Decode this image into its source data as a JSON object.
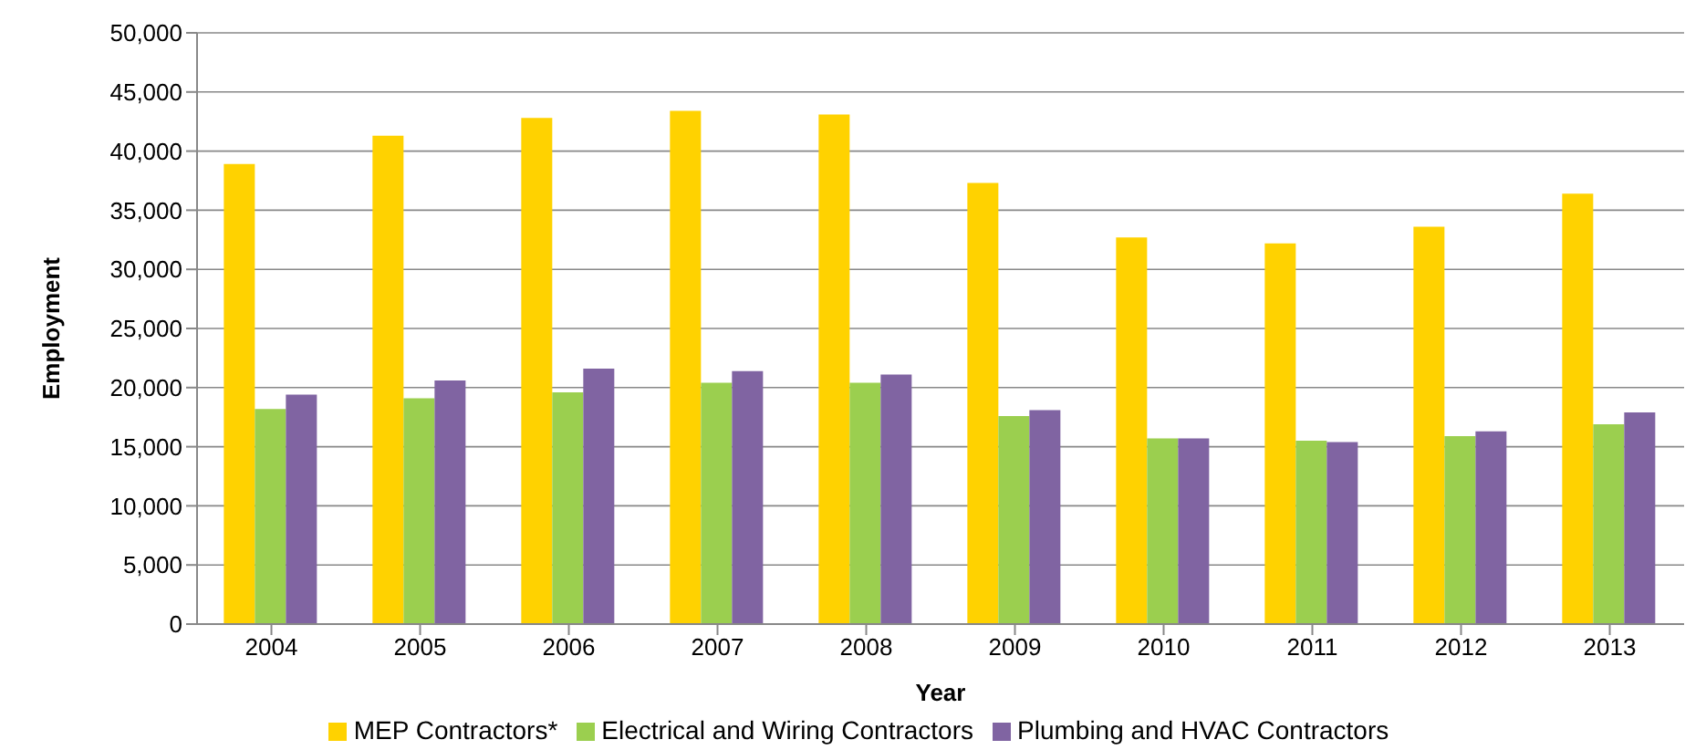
{
  "chart_data": {
    "type": "bar",
    "xlabel": "Year",
    "ylabel": "Employment",
    "categories": [
      "2004",
      "2005",
      "2006",
      "2007",
      "2008",
      "2009",
      "2010",
      "2011",
      "2012",
      "2013"
    ],
    "series": [
      {
        "name": "MEP Contractors*",
        "color": "#ffd200",
        "values": [
          38900,
          41300,
          42800,
          43400,
          43100,
          37300,
          32700,
          32200,
          33600,
          36400
        ]
      },
      {
        "name": "Electrical and Wiring Contractors",
        "color": "#9bcf4f",
        "values": [
          18200,
          19100,
          19600,
          20400,
          20400,
          17600,
          15700,
          15500,
          15900,
          16900
        ]
      },
      {
        "name": "Plumbing and HVAC Contractors",
        "color": "#8064a2",
        "values": [
          19400,
          20600,
          21600,
          21400,
          21100,
          18100,
          15700,
          15400,
          16300,
          17900
        ]
      }
    ],
    "ylim": [
      0,
      50000
    ],
    "yticks": [
      0,
      {
        "value": 5000,
        "label": "5,000"
      },
      {
        "value": 10000,
        "label": "10,000"
      },
      {
        "value": 15000,
        "label": "15,000"
      },
      {
        "value": 20000,
        "label": "20,000"
      },
      {
        "value": 25000,
        "label": "25,000"
      },
      {
        "value": 30000,
        "label": "30,000"
      },
      {
        "value": 35000,
        "label": "35,000"
      },
      {
        "value": 40000,
        "label": "40,000"
      },
      {
        "value": 45000,
        "label": "45,000"
      },
      {
        "value": 50000,
        "label": "50,000"
      }
    ],
    "grid": "y",
    "legend": "bottom"
  }
}
